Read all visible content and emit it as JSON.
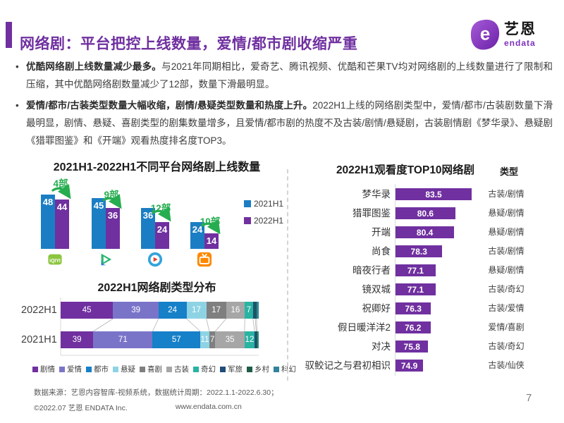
{
  "header": {
    "title": "网络剧：平台把控上线数量，爱情/都市剧收缩严重",
    "logo": {
      "brand": "艺恩",
      "sub": "endata"
    },
    "accent_color": "#7030A0"
  },
  "bullets": [
    {
      "lead": "优酷网络剧上线数量减少最多。",
      "rest": "与2021年同期相比，爱奇艺、腾讯视频、优酷和芒果TV均对网络剧的上线数量进行了限制和压缩，其中优酷网络剧数量减少了12部，数量下滑最明显。"
    },
    {
      "lead": "爱情/都市/古装类型数量大幅收缩，剧情/悬疑类型数量和热度上升。",
      "rest": "2022H1上线的网络剧类型中，爱情/都市/古装剧数量下滑最明显，剧情、悬疑、喜剧类型的剧集数量增多，且爱情/都市剧的热度不及古装/剧情/悬疑剧，古装剧情剧《梦华录》、悬疑剧《猎罪图鉴》和《开端》观看热度排名度TOP3。"
    }
  ],
  "chart_data": [
    {
      "type": "bar",
      "subtype": "grouped-vertical",
      "title": "2021H1-2022H1不同平台网络剧上线数量",
      "categories": [
        "爱奇艺",
        "腾讯视频",
        "优酷",
        "芒果TV"
      ],
      "icons": [
        "iqiyi-icon",
        "tencent-video-icon",
        "youku-icon",
        "mango-tv-icon"
      ],
      "series": [
        {
          "name": "2021H1",
          "color": "#1B7EC4",
          "values": [
            48,
            45,
            36,
            24
          ]
        },
        {
          "name": "2022H1",
          "color": "#7030A0",
          "values": [
            44,
            36,
            24,
            14
          ]
        }
      ],
      "decrease_labels": [
        "4部",
        "9部",
        "12部",
        "10部"
      ],
      "annotation_color": "#25AD4F",
      "legend_position": "right",
      "grid": false
    },
    {
      "type": "bar",
      "subtype": "stacked-horizontal-100pct",
      "title": "2022H1网络剧类型分布",
      "legend": [
        "剧情",
        "爱情",
        "都市",
        "悬疑",
        "喜剧",
        "古装",
        "奇幻",
        "军旅",
        "乡村",
        "科幻"
      ],
      "colors": [
        "#7030A0",
        "#7A74C9",
        "#1680C8",
        "#8ED3E4",
        "#7F7F7F",
        "#A6A6A6",
        "#29B3A2",
        "#1F4E79",
        "#1E5C45",
        "#31849B"
      ],
      "rows": [
        {
          "name": "2022H1",
          "values": [
            45,
            39,
            24,
            17,
            17,
            16,
            7,
            2,
            1,
            2
          ]
        },
        {
          "name": "2021H1",
          "values": [
            39,
            71,
            57,
            11,
            7,
            35,
            12,
            2,
            1,
            2
          ]
        }
      ],
      "label_min_value": 7,
      "legend_position": "bottom",
      "grid": false
    },
    {
      "type": "bar",
      "subtype": "horizontal",
      "title": "2022H1观看度TOP10网络剧",
      "genre_header": "类型",
      "bar_color": "#7030A0",
      "xmin": 70,
      "items": [
        {
          "name": "梦华录",
          "value": 83.5,
          "genre": "古装/剧情"
        },
        {
          "name": "猎罪图鉴",
          "value": 80.6,
          "genre": "悬疑/剧情"
        },
        {
          "name": "开端",
          "value": 80.4,
          "genre": "悬疑/剧情"
        },
        {
          "name": "尚食",
          "value": 78.3,
          "genre": "古装/剧情"
        },
        {
          "name": "暗夜行者",
          "value": 77.1,
          "genre": "悬疑/剧情"
        },
        {
          "name": "镜双城",
          "value": 77.1,
          "genre": "古装/奇幻"
        },
        {
          "name": "祝卿好",
          "value": 76.3,
          "genre": "古装/爱情"
        },
        {
          "name": "假日暖洋洋2",
          "value": 76.2,
          "genre": "爱情/喜剧"
        },
        {
          "name": "对决",
          "value": 75.8,
          "genre": "古装/奇幻"
        },
        {
          "name": "驭鲛记之与君初相识",
          "value": 74.9,
          "genre": "古装/仙侠"
        }
      ],
      "grid": false
    }
  ],
  "footer": {
    "source": "数据来源：艺恩内容智库-视频系统，数据统计周期：2022.1.1-2022.6.30；",
    "copyright": "©2022.07 艺恩 ENDATA Inc.",
    "website": "www.endata.com.cn",
    "page": "7"
  }
}
